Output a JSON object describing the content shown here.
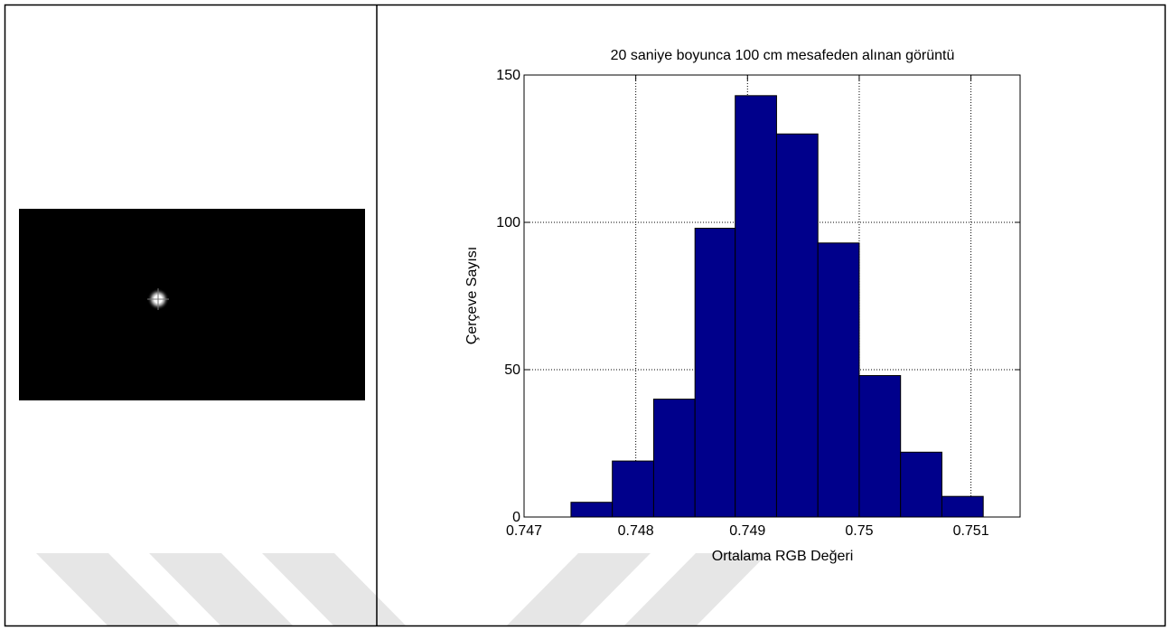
{
  "chart_data": {
    "type": "histogram",
    "title": "20 saniye  boyunca 100 cm mesafeden alınan görüntü",
    "xlabel": "Ortalama RGB Değeri",
    "ylabel": "Çerçeve Sayısı",
    "bins": [
      0.74742,
      0.74779,
      0.74816,
      0.74853,
      0.74889,
      0.74926,
      0.74963,
      0.75,
      0.75037,
      0.75074,
      0.75111
    ],
    "values": [
      5,
      19,
      40,
      98,
      143,
      130,
      93,
      48,
      22,
      7
    ],
    "color": "#00008b",
    "xlim": [
      0.747,
      0.75144
    ],
    "xticks": [
      0.747,
      0.748,
      0.749,
      0.75,
      0.751
    ],
    "ylim": [
      0,
      150
    ],
    "yticks": [
      0,
      50,
      100,
      150
    ],
    "grid": true
  }
}
